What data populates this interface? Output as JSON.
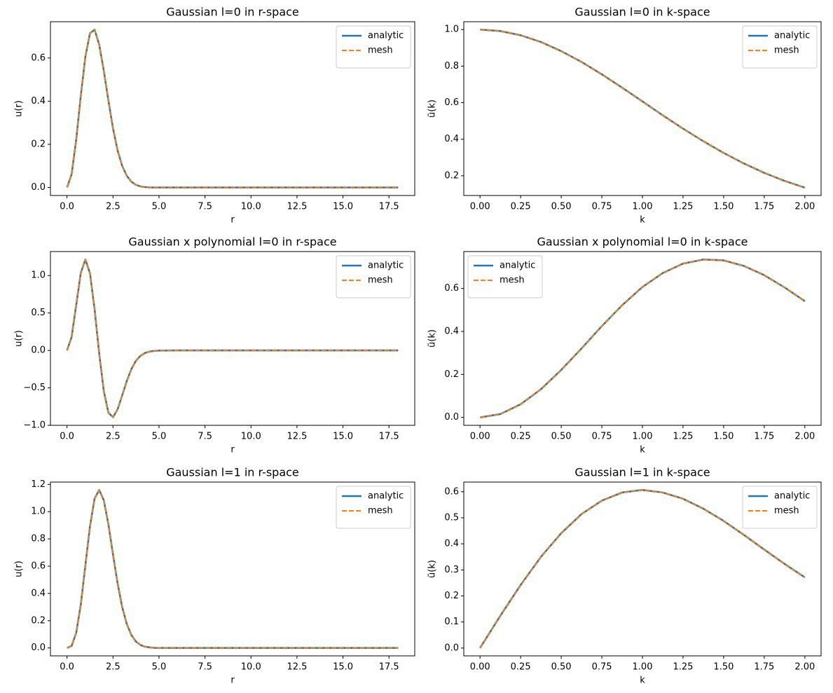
{
  "chart_data": [
    {
      "type": "line",
      "title": "Gaussian l=0 in r-space",
      "xlabel": "r",
      "ylabel": "u(r)",
      "x": [
        0,
        0.25,
        0.5,
        0.75,
        1,
        1.25,
        1.5,
        1.75,
        2,
        2.25,
        2.5,
        2.75,
        3,
        3.25,
        3.5,
        3.75,
        4,
        4.25,
        4.5,
        4.75,
        5,
        6,
        7,
        8,
        9,
        10,
        11,
        12,
        13,
        14,
        15,
        16,
        17,
        18
      ],
      "series": [
        {
          "name": "analytic",
          "color": "#1f77b4",
          "style": "solid",
          "values": [
            0,
            0.061,
            0.221,
            0.425,
            0.607,
            0.715,
            0.731,
            0.662,
            0.541,
            0.403,
            0.274,
            0.172,
            0.1,
            0.054,
            0.027,
            0.012,
            0.005,
            0.002,
            0.0005,
            0.0002,
            0,
            0,
            0,
            0,
            0,
            0,
            0,
            0,
            0,
            0,
            0,
            0,
            0,
            0
          ]
        },
        {
          "name": "mesh",
          "color": "#ff7f0e",
          "style": "dashed",
          "values": [
            0,
            0.061,
            0.221,
            0.425,
            0.607,
            0.715,
            0.731,
            0.662,
            0.541,
            0.403,
            0.274,
            0.172,
            0.1,
            0.054,
            0.027,
            0.012,
            0.005,
            0.002,
            0.0005,
            0.0002,
            0,
            0,
            0,
            0,
            0,
            0,
            0,
            0,
            0,
            0,
            0,
            0,
            0,
            0
          ]
        }
      ],
      "xlim": [
        -0.9,
        18.9
      ],
      "xticks": [
        {
          "value": 0,
          "label": "0.0"
        },
        2.5,
        {
          "value": 5,
          "label": "5.0"
        },
        7.5,
        {
          "value": 10,
          "label": "10.0"
        },
        12.5,
        {
          "value": 15,
          "label": "15.0"
        },
        17.5
      ],
      "ylim": [
        -0.037,
        0.768
      ],
      "yticks": [
        {
          "value": 0,
          "label": "0.0"
        },
        0.2,
        0.4,
        0.6
      ],
      "legend": "upper right"
    },
    {
      "type": "line",
      "title": "Gaussian l=0 in k-space",
      "xlabel": "k",
      "ylabel": "ũ(k)",
      "x": [
        0,
        0.125,
        0.25,
        0.375,
        0.5,
        0.625,
        0.75,
        0.875,
        1,
        1.125,
        1.25,
        1.375,
        1.5,
        1.625,
        1.75,
        1.875,
        2
      ],
      "series": [
        {
          "name": "analytic",
          "color": "#1f77b4",
          "style": "solid",
          "values": [
            1,
            0.992,
            0.969,
            0.932,
            0.882,
            0.823,
            0.755,
            0.682,
            0.607,
            0.531,
            0.458,
            0.389,
            0.325,
            0.267,
            0.216,
            0.172,
            0.135
          ]
        },
        {
          "name": "mesh",
          "color": "#ff7f0e",
          "style": "dashed",
          "values": [
            1,
            0.992,
            0.969,
            0.932,
            0.882,
            0.823,
            0.755,
            0.682,
            0.607,
            0.531,
            0.458,
            0.389,
            0.325,
            0.267,
            0.216,
            0.172,
            0.135
          ]
        }
      ],
      "xlim": [
        -0.1,
        2.1
      ],
      "xticks": [
        {
          "value": 0,
          "label": "0.00"
        },
        0.25,
        {
          "value": 0.5,
          "label": "0.50"
        },
        0.75,
        {
          "value": 1,
          "label": "1.00"
        },
        1.25,
        {
          "value": 1.5,
          "label": "1.50"
        },
        1.75,
        {
          "value": 2,
          "label": "2.00"
        }
      ],
      "ylim": [
        0.092,
        1.043
      ],
      "yticks": [
        0.2,
        0.4,
        0.6,
        0.8,
        {
          "value": 1,
          "label": "1.0"
        }
      ],
      "legend": "upper right"
    },
    {
      "type": "line",
      "title": "Gaussian x polynomial l=0 in r-space",
      "xlabel": "r",
      "ylabel": "u(r)",
      "x": [
        0,
        0.25,
        0.5,
        0.75,
        1,
        1.25,
        1.5,
        1.75,
        2,
        2.25,
        2.5,
        2.75,
        3,
        3.25,
        3.5,
        3.75,
        4,
        4.25,
        4.5,
        4.75,
        5,
        6,
        7,
        8,
        9,
        10,
        11,
        12,
        13,
        14,
        15,
        16,
        17,
        18
      ],
      "series": [
        {
          "name": "analytic",
          "color": "#1f77b4",
          "style": "solid",
          "values": [
            0,
            0.178,
            0.607,
            1.035,
            1.213,
            1.028,
            0.548,
            -0.041,
            -0.541,
            -0.831,
            -0.892,
            -0.787,
            -0.6,
            -0.407,
            -0.248,
            -0.137,
            -0.07,
            -0.033,
            -0.014,
            -0.006,
            -0.002,
            0,
            0,
            0,
            0,
            0,
            0,
            0,
            0,
            0,
            0,
            0,
            0,
            0
          ]
        },
        {
          "name": "mesh",
          "color": "#ff7f0e",
          "style": "dashed",
          "values": [
            0,
            0.178,
            0.607,
            1.035,
            1.213,
            1.028,
            0.548,
            -0.041,
            -0.541,
            -0.831,
            -0.892,
            -0.787,
            -0.6,
            -0.407,
            -0.248,
            -0.137,
            -0.07,
            -0.033,
            -0.014,
            -0.006,
            -0.002,
            0,
            0,
            0,
            0,
            0,
            0,
            0,
            0,
            0,
            0,
            0,
            0,
            0
          ]
        }
      ],
      "xlim": [
        -0.9,
        18.9
      ],
      "xticks": [
        {
          "value": 0,
          "label": "0.0"
        },
        2.5,
        {
          "value": 5,
          "label": "5.0"
        },
        7.5,
        {
          "value": 10,
          "label": "10.0"
        },
        12.5,
        {
          "value": 15,
          "label": "15.0"
        },
        17.5
      ],
      "ylim": [
        -1.0,
        1.32
      ],
      "yticks": [
        {
          "value": -1,
          "label": "−1.0"
        },
        {
          "value": -0.5,
          "label": "−0.5"
        },
        {
          "value": 0,
          "label": "0.0"
        },
        0.5,
        {
          "value": 1,
          "label": "1.0"
        }
      ],
      "legend": "upper right"
    },
    {
      "type": "line",
      "title": "Gaussian x polynomial l=0 in k-space",
      "xlabel": "k",
      "ylabel": "ũ(k)",
      "x": [
        0,
        0.125,
        0.25,
        0.375,
        0.5,
        0.625,
        0.75,
        0.875,
        1,
        1.125,
        1.25,
        1.375,
        1.5,
        1.625,
        1.75,
        1.875,
        2
      ],
      "series": [
        {
          "name": "analytic",
          "color": "#1f77b4",
          "style": "solid",
          "values": [
            0,
            0.0155,
            0.061,
            0.131,
            0.221,
            0.321,
            0.425,
            0.522,
            0.607,
            0.672,
            0.716,
            0.735,
            0.731,
            0.705,
            0.662,
            0.605,
            0.541
          ]
        },
        {
          "name": "mesh",
          "color": "#ff7f0e",
          "style": "dashed",
          "values": [
            0,
            0.0155,
            0.061,
            0.131,
            0.221,
            0.321,
            0.425,
            0.522,
            0.607,
            0.672,
            0.716,
            0.735,
            0.731,
            0.705,
            0.662,
            0.605,
            0.541
          ]
        }
      ],
      "xlim": [
        -0.1,
        2.1
      ],
      "xticks": [
        {
          "value": 0,
          "label": "0.00"
        },
        0.25,
        {
          "value": 0.5,
          "label": "0.50"
        },
        0.75,
        {
          "value": 1,
          "label": "1.00"
        },
        1.25,
        {
          "value": 1.5,
          "label": "1.50"
        },
        1.75,
        {
          "value": 2,
          "label": "2.00"
        }
      ],
      "ylim": [
        -0.037,
        0.772
      ],
      "yticks": [
        {
          "value": 0,
          "label": "0.0"
        },
        0.2,
        0.4,
        0.6
      ],
      "legend": "upper left"
    },
    {
      "type": "line",
      "title": "Gaussian l=1 in r-space",
      "xlabel": "r",
      "ylabel": "u(r)",
      "x": [
        0,
        0.25,
        0.5,
        0.75,
        1,
        1.25,
        1.5,
        1.75,
        2,
        2.25,
        2.5,
        2.75,
        3,
        3.25,
        3.5,
        3.75,
        4,
        4.25,
        4.5,
        4.75,
        5,
        6,
        7,
        8,
        9,
        10,
        11,
        12,
        13,
        14,
        15,
        16,
        17,
        18
      ],
      "series": [
        {
          "name": "analytic",
          "color": "#1f77b4",
          "style": "solid",
          "values": [
            0,
            0.015,
            0.11,
            0.318,
            0.607,
            0.894,
            1.096,
            1.159,
            1.083,
            0.907,
            0.686,
            0.474,
            0.3,
            0.175,
            0.094,
            0.047,
            0.021,
            0.009,
            0.004,
            0.001,
            0.0005,
            0,
            0,
            0,
            0,
            0,
            0,
            0,
            0,
            0,
            0,
            0,
            0,
            0
          ]
        },
        {
          "name": "mesh",
          "color": "#ff7f0e",
          "style": "dashed",
          "values": [
            0,
            0.015,
            0.11,
            0.318,
            0.607,
            0.894,
            1.096,
            1.159,
            1.083,
            0.907,
            0.686,
            0.474,
            0.3,
            0.175,
            0.094,
            0.047,
            0.021,
            0.009,
            0.004,
            0.001,
            0.0005,
            0,
            0,
            0,
            0,
            0,
            0,
            0,
            0,
            0,
            0,
            0,
            0,
            0
          ]
        }
      ],
      "xlim": [
        -0.9,
        18.9
      ],
      "xticks": [
        {
          "value": 0,
          "label": "0.0"
        },
        2.5,
        {
          "value": 5,
          "label": "5.0"
        },
        7.5,
        {
          "value": 10,
          "label": "10.0"
        },
        12.5,
        {
          "value": 15,
          "label": "15.0"
        },
        17.5
      ],
      "ylim": [
        -0.058,
        1.217
      ],
      "yticks": [
        {
          "value": 0,
          "label": "0.0"
        },
        0.2,
        0.4,
        0.6,
        0.8,
        {
          "value": 1,
          "label": "1.0"
        },
        1.2
      ],
      "legend": "upper right"
    },
    {
      "type": "line",
      "title": "Gaussian l=1 in k-space",
      "xlabel": "k",
      "ylabel": "ũ(k)",
      "x": [
        0,
        0.125,
        0.25,
        0.375,
        0.5,
        0.625,
        0.75,
        0.875,
        1,
        1.125,
        1.25,
        1.375,
        1.5,
        1.625,
        1.75,
        1.875,
        2
      ],
      "series": [
        {
          "name": "analytic",
          "color": "#1f77b4",
          "style": "solid",
          "values": [
            0,
            0.124,
            0.242,
            0.35,
            0.441,
            0.514,
            0.566,
            0.597,
            0.607,
            0.597,
            0.573,
            0.535,
            0.488,
            0.434,
            0.378,
            0.323,
            0.271
          ]
        },
        {
          "name": "mesh",
          "color": "#ff7f0e",
          "style": "dashed",
          "values": [
            0,
            0.124,
            0.242,
            0.35,
            0.441,
            0.514,
            0.566,
            0.597,
            0.607,
            0.597,
            0.573,
            0.535,
            0.488,
            0.434,
            0.378,
            0.323,
            0.271
          ]
        }
      ],
      "xlim": [
        -0.1,
        2.1
      ],
      "xticks": [
        {
          "value": 0,
          "label": "0.00"
        },
        0.25,
        {
          "value": 0.5,
          "label": "0.50"
        },
        0.75,
        {
          "value": 1,
          "label": "1.00"
        },
        1.25,
        {
          "value": 1.5,
          "label": "1.50"
        },
        1.75,
        {
          "value": 2,
          "label": "2.00"
        }
      ],
      "ylim": [
        -0.03,
        0.637
      ],
      "yticks": [
        {
          "value": 0,
          "label": "0.0"
        },
        0.1,
        0.2,
        0.3,
        0.4,
        0.5,
        0.6
      ],
      "legend": "upper right"
    }
  ]
}
